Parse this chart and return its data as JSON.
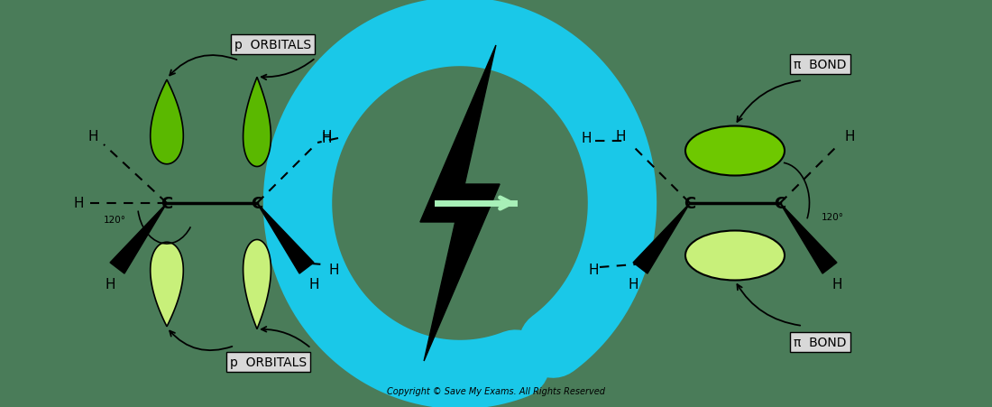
{
  "bg_color": "#4a7c59",
  "dark_green": "#5ab800",
  "light_green": "#c8f07a",
  "pi_dark": "#6ec800",
  "pi_light": "#c8f07a",
  "cyan_color": "#1ac8e8",
  "arrow_mint": "#a8f0b8",
  "label_bg": "#d8d8d8",
  "black": "#000000",
  "copyright": "Copyright © Save My Exams. All Rights Reserved",
  "fig_w": 11.0,
  "fig_h": 4.52,
  "dpi": 100,
  "xlim": [
    0,
    11.0
  ],
  "ylim": [
    0,
    4.52
  ]
}
